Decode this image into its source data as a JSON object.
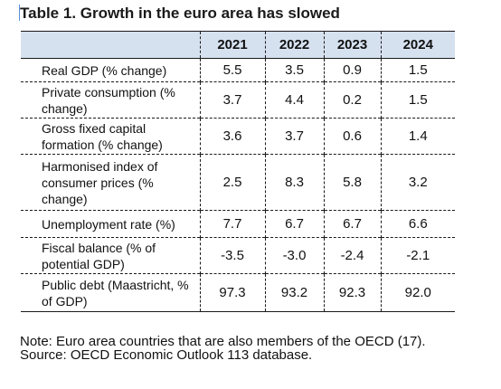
{
  "title": "Table 1. Growth in the euro area has slowed",
  "columns": [
    "2021",
    "2022",
    "2023",
    "2024"
  ],
  "rows": [
    {
      "label": "Real GDP (% change)",
      "values": [
        "5.5",
        "3.5",
        "0.9",
        "1.5"
      ]
    },
    {
      "label": "Private consumption (% change)",
      "values": [
        "3.7",
        "4.4",
        "0.2",
        "1.5"
      ]
    },
    {
      "label": "Gross fixed capital formation (% change)",
      "values": [
        "3.6",
        "3.7",
        "0.6",
        "1.4"
      ]
    },
    {
      "label": "Harmonised index of consumer prices (% change)",
      "values": [
        "2.5",
        "8.3",
        "5.8",
        "3.2"
      ]
    },
    {
      "label": "Unemployment rate (%)",
      "values": [
        "7.7",
        "6.7",
        "6.7",
        "6.6"
      ]
    },
    {
      "label": "Fiscal balance (% of potential GDP)",
      "values": [
        "-3.5",
        "-3.0",
        "-2.4",
        "-2.1"
      ]
    },
    {
      "label": "Public debt (Maastricht, % of GDP)",
      "values": [
        "97.3",
        "93.2",
        "92.3",
        "92.0"
      ]
    }
  ],
  "note": "Note: Euro area countries that are also members of the OECD (17).",
  "source": "Source: OECD Economic Outlook 113 database."
}
